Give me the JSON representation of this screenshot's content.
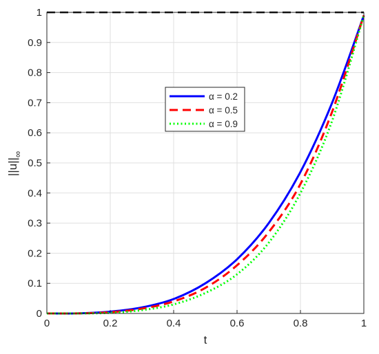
{
  "chart_data": {
    "type": "line",
    "title": "",
    "xlabel": "t",
    "ylabel": "||u||",
    "ylabel_subscript": "∞",
    "xlim": [
      0,
      1
    ],
    "ylim": [
      0,
      1
    ],
    "grid": true,
    "legend_position": "center",
    "x_ticks": [
      0,
      0.2,
      0.4,
      0.6,
      0.8,
      1
    ],
    "x_tick_labels": [
      "0",
      "0.2",
      "0.4",
      "0.6",
      "0.8",
      "1"
    ],
    "y_ticks": [
      0,
      0.1,
      0.2,
      0.3,
      0.4,
      0.5,
      0.6,
      0.7,
      0.8,
      0.9,
      1
    ],
    "y_tick_labels": [
      "0",
      "0.1",
      "0.2",
      "0.3",
      "0.4",
      "0.5",
      "0.6",
      "0.7",
      "0.8",
      "0.9",
      "1"
    ],
    "x": [
      0,
      0.1,
      0.2,
      0.3,
      0.4,
      0.5,
      0.6,
      0.7,
      0.8,
      0.9,
      1.0
    ],
    "series": [
      {
        "name": "α = 0.2",
        "color": "#0000ff",
        "style": "solid",
        "values": [
          0,
          0.0003,
          0.006,
          0.02,
          0.048,
          0.1,
          0.18,
          0.3,
          0.47,
          0.7,
          0.99
        ]
      },
      {
        "name": "α = 0.5",
        "color": "#ff0000",
        "style": "dashed",
        "values": [
          0,
          0.0002,
          0.004,
          0.016,
          0.04,
          0.085,
          0.16,
          0.27,
          0.43,
          0.67,
          0.99
        ]
      },
      {
        "name": "α = 0.9",
        "color": "#00ff00",
        "style": "dotted",
        "values": [
          0,
          0.0001,
          0.002,
          0.011,
          0.03,
          0.068,
          0.13,
          0.235,
          0.4,
          0.64,
          0.99
        ]
      },
      {
        "name": "",
        "color": "#000000",
        "style": "dashed",
        "values": [
          1,
          1,
          1,
          1,
          1,
          1,
          1,
          1,
          1,
          1,
          1
        ]
      }
    ]
  }
}
